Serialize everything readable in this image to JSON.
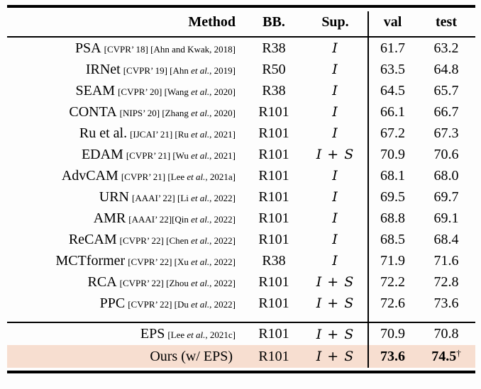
{
  "header": {
    "method": "Method",
    "bb": "BB.",
    "sup": "Sup.",
    "val": "val",
    "test": "test"
  },
  "highlight_color": "#f7ded0",
  "body_rows": [
    {
      "method": "PSA",
      "cite_pre": "[CVPR’ 18] [Ahn and Kwak, 2018]",
      "cite_etal": "",
      "cite_post": "",
      "bb": "R38",
      "sup": "I",
      "val": "61.7",
      "test": "63.2"
    },
    {
      "method": "IRNet",
      "cite_pre": "[CVPR’ 19] [Ahn ",
      "cite_etal": "et al.",
      "cite_post": ", 2019]",
      "bb": "R50",
      "sup": "I",
      "val": "63.5",
      "test": "64.8"
    },
    {
      "method": "SEAM",
      "cite_pre": "[CVPR’ 20] [Wang ",
      "cite_etal": "et al.",
      "cite_post": ", 2020]",
      "bb": "R38",
      "sup": "I",
      "val": "64.5",
      "test": "65.7"
    },
    {
      "method": "CONTA",
      "cite_pre": "[NIPS’ 20] [Zhang ",
      "cite_etal": "et al.",
      "cite_post": ", 2020]",
      "bb": "R101",
      "sup": "I",
      "val": "66.1",
      "test": "66.7"
    },
    {
      "method": "Ru et al.",
      "cite_pre": "[IJCAI’ 21] [Ru ",
      "cite_etal": "et al.",
      "cite_post": ", 2021]",
      "bb": "R101",
      "sup": "I",
      "val": "67.2",
      "test": "67.3"
    },
    {
      "method": "EDAM",
      "cite_pre": "[CVPR’ 21] [Wu ",
      "cite_etal": "et al.",
      "cite_post": ", 2021]",
      "bb": "R101",
      "sup": "I + S",
      "val": "70.9",
      "test": "70.6"
    },
    {
      "method": "AdvCAM",
      "cite_pre": "[CVPR’ 21] [Lee ",
      "cite_etal": "et al.",
      "cite_post": ", 2021a]",
      "bb": "R101",
      "sup": "I",
      "val": "68.1",
      "test": "68.0"
    },
    {
      "method": "URN",
      "cite_pre": "[AAAI’ 22] [Li ",
      "cite_etal": "et al.",
      "cite_post": ", 2022]",
      "bb": "R101",
      "sup": "I",
      "val": "69.5",
      "test": "69.7"
    },
    {
      "method": "AMR",
      "cite_pre": "[AAAI’ 22][Qin ",
      "cite_etal": "et al.",
      "cite_post": ", 2022]",
      "bb": "R101",
      "sup": "I",
      "val": "68.8",
      "test": "69.1"
    },
    {
      "method": "ReCAM",
      "cite_pre": "[CVPR’ 22] [Chen ",
      "cite_etal": "et al.",
      "cite_post": ", 2022]",
      "bb": "R101",
      "sup": "I",
      "val": "68.5",
      "test": "68.4"
    },
    {
      "method": "MCTformer",
      "cite_pre": "[CVPR’ 22] [Xu ",
      "cite_etal": "et al.",
      "cite_post": ", 2022]",
      "bb": "R38",
      "sup": "I",
      "val": "71.9",
      "test": "71.6"
    },
    {
      "method": "RCA",
      "cite_pre": "[CVPR’ 22] [Zhou ",
      "cite_etal": "et al.",
      "cite_post": ", 2022]",
      "bb": "R101",
      "sup": "I + S",
      "val": "72.2",
      "test": "72.8"
    },
    {
      "method": "PPC",
      "cite_pre": "[CVPR’ 22] [Du ",
      "cite_etal": "et al.",
      "cite_post": ", 2022]",
      "bb": "R101",
      "sup": "I + S",
      "val": "72.6",
      "test": "73.6"
    }
  ],
  "footer_rows": [
    {
      "method": "EPS",
      "cite_pre": "[Lee ",
      "cite_etal": "et al.",
      "cite_post": ", 2021c]",
      "bb": "R101",
      "sup": "I + S",
      "val": "70.9",
      "test": "70.8"
    },
    {
      "method": "Ours (w/ EPS)",
      "cite_pre": "",
      "cite_etal": "",
      "cite_post": "",
      "bb": "R101",
      "sup": "I + S",
      "val": "73.6",
      "test": "74.5",
      "dagger": "†",
      "bold": true,
      "highlight": true
    }
  ]
}
